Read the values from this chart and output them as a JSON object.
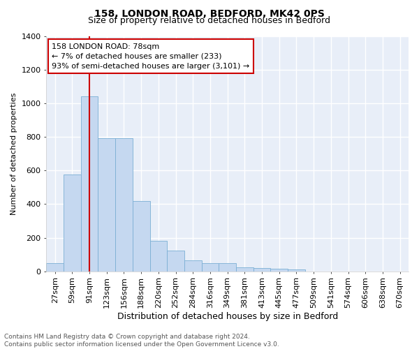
{
  "title1": "158, LONDON ROAD, BEDFORD, MK42 0PS",
  "title2": "Size of property relative to detached houses in Bedford",
  "xlabel": "Distribution of detached houses by size in Bedford",
  "ylabel": "Number of detached properties",
  "categories": [
    "27sqm",
    "59sqm",
    "91sqm",
    "123sqm",
    "156sqm",
    "188sqm",
    "220sqm",
    "252sqm",
    "284sqm",
    "316sqm",
    "349sqm",
    "381sqm",
    "413sqm",
    "445sqm",
    "477sqm",
    "509sqm",
    "541sqm",
    "574sqm",
    "606sqm",
    "638sqm",
    "670sqm"
  ],
  "values": [
    50,
    575,
    1040,
    790,
    790,
    420,
    180,
    125,
    65,
    50,
    50,
    25,
    20,
    15,
    10,
    0,
    0,
    0,
    0,
    0,
    0
  ],
  "bar_color": "#c5d8f0",
  "bar_edge_color": "#7bafd4",
  "background_color": "#e8eef8",
  "red_line_x": 2.0,
  "annotation_text": "158 LONDON ROAD: 78sqm\n← 7% of detached houses are smaller (233)\n93% of semi-detached houses are larger (3,101) →",
  "annotation_box_color": "#ffffff",
  "annotation_box_edge": "#cc0000",
  "ylim": [
    0,
    1400
  ],
  "yticks": [
    0,
    200,
    400,
    600,
    800,
    1000,
    1200,
    1400
  ],
  "footer": "Contains HM Land Registry data © Crown copyright and database right 2024.\nContains public sector information licensed under the Open Government Licence v3.0.",
  "title1_fontsize": 10,
  "title2_fontsize": 9,
  "xlabel_fontsize": 9,
  "ylabel_fontsize": 8,
  "tick_fontsize": 8,
  "annotation_fontsize": 8,
  "footer_fontsize": 6.5
}
